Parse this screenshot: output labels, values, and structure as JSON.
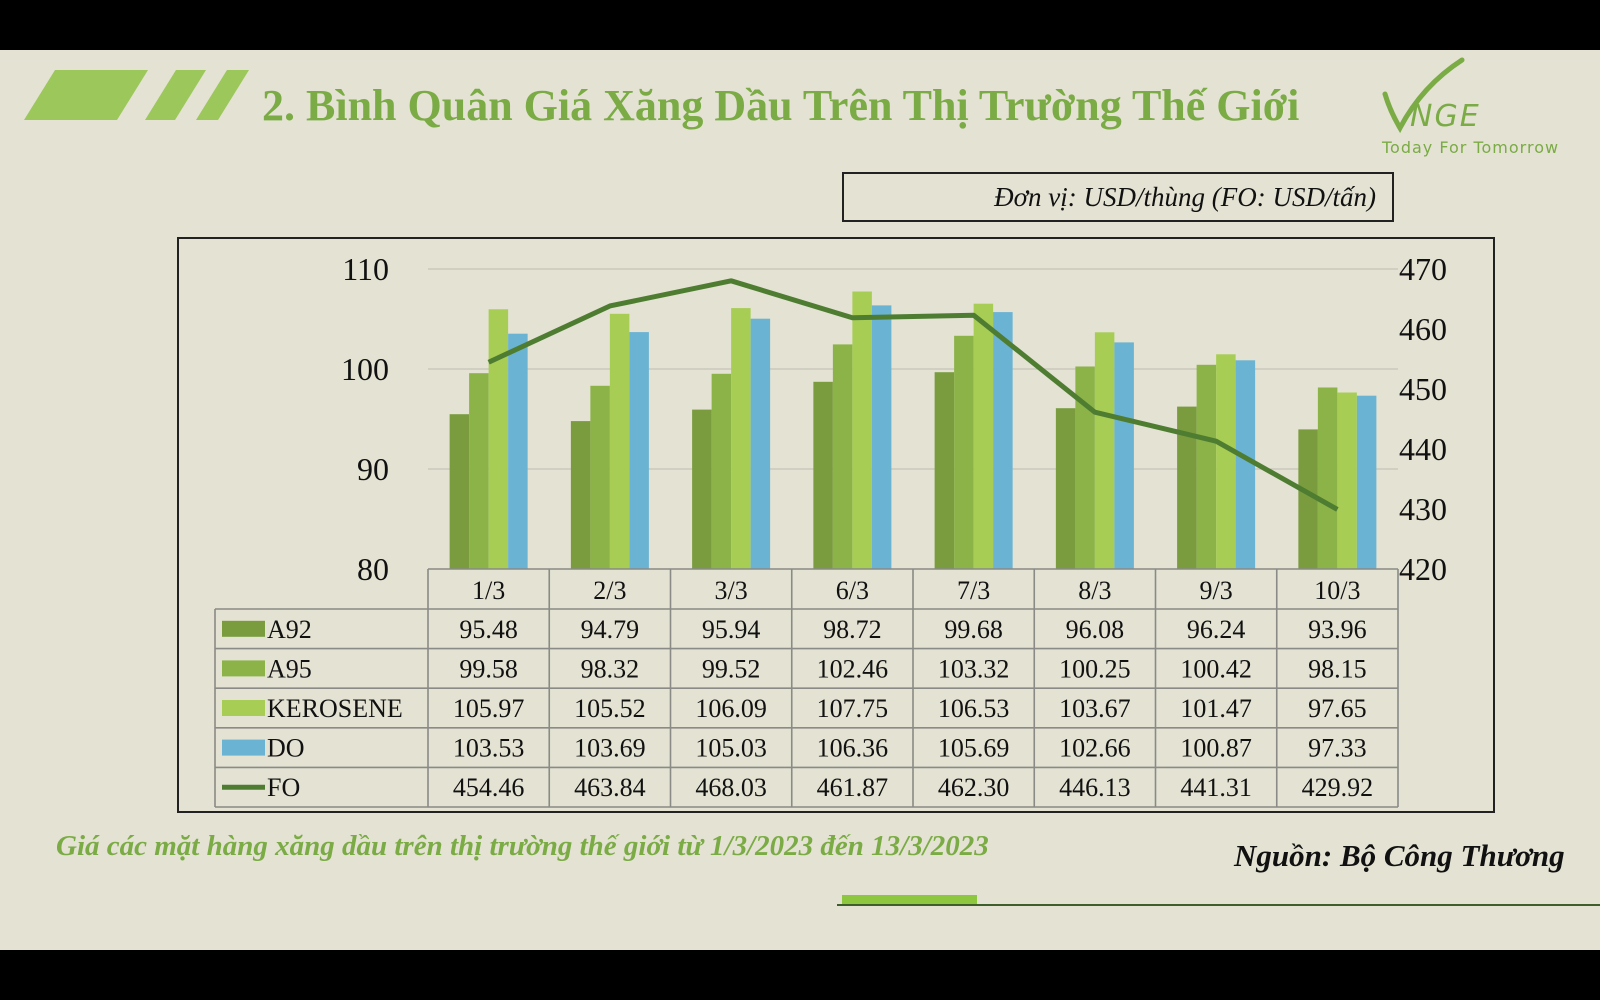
{
  "header": {
    "title": "2. Bình Quân Giá Xăng Dầu Trên Thị Trường Thế Giới",
    "logo_text": "VNGE",
    "tagline": "Today For Tomorrow"
  },
  "unit_note": "Đơn vị: USD/thùng (FO: USD/tấn)",
  "caption": "Giá các mặt hàng xăng dầu trên thị trường thế giới từ 1/3/2023 đến 13/3/2023",
  "source": "Nguồn: Bộ Công Thương",
  "colors": {
    "background": "#e3e2d3",
    "accent": "#7aab44",
    "A92": "#7a9c3e",
    "A95": "#8bb347",
    "KEROSENE": "#a7cd55",
    "DO": "#6ab3d3",
    "FO": "#4e7d31"
  },
  "chart_data": {
    "type": "bar",
    "categories": [
      "1/3",
      "2/3",
      "3/3",
      "6/3",
      "7/3",
      "8/3",
      "9/3",
      "10/3"
    ],
    "series": [
      {
        "name": "A92",
        "type": "bar",
        "axis": "left",
        "values": [
          95.48,
          94.79,
          95.94,
          98.72,
          99.68,
          96.08,
          96.24,
          93.96
        ]
      },
      {
        "name": "A95",
        "type": "bar",
        "axis": "left",
        "values": [
          99.58,
          98.32,
          99.52,
          102.46,
          103.32,
          100.25,
          100.42,
          98.15
        ]
      },
      {
        "name": "KEROSENE",
        "type": "bar",
        "axis": "left",
        "values": [
          105.97,
          105.52,
          106.09,
          107.75,
          106.53,
          103.67,
          101.47,
          97.65
        ]
      },
      {
        "name": "DO",
        "type": "bar",
        "axis": "left",
        "values": [
          103.53,
          103.69,
          105.03,
          106.36,
          105.69,
          102.66,
          100.87,
          97.33
        ]
      },
      {
        "name": "FO",
        "type": "line",
        "axis": "right",
        "values": [
          454.46,
          463.84,
          468.03,
          461.87,
          462.3,
          446.13,
          441.31,
          429.92
        ]
      }
    ],
    "value_labels": [
      [
        "95.48",
        "94.79",
        "95.94",
        "98.72",
        "99.68",
        "96.08",
        "96.24",
        "93.96"
      ],
      [
        "99.58",
        "98.32",
        "99.52",
        "102.46",
        "103.32",
        "100.25",
        "100.42",
        "98.15"
      ],
      [
        "105.97",
        "105.52",
        "106.09",
        "107.75",
        "106.53",
        "103.67",
        "101.47",
        "97.65"
      ],
      [
        "103.53",
        "103.69",
        "105.03",
        "106.36",
        "105.69",
        "102.66",
        "100.87",
        "97.33"
      ],
      [
        "454.46",
        "463.84",
        "468.03",
        "461.87",
        "462.30",
        "446.13",
        "441.31",
        "429.92"
      ]
    ],
    "y_left": {
      "ylim": [
        80,
        110
      ],
      "ticks": [
        "80",
        "90",
        "100",
        "110"
      ]
    },
    "y_right": {
      "ylim": [
        420,
        470
      ],
      "ticks": [
        "420",
        "430",
        "440",
        "450",
        "460",
        "470"
      ]
    },
    "grid": true,
    "legend": "data table below chart"
  }
}
